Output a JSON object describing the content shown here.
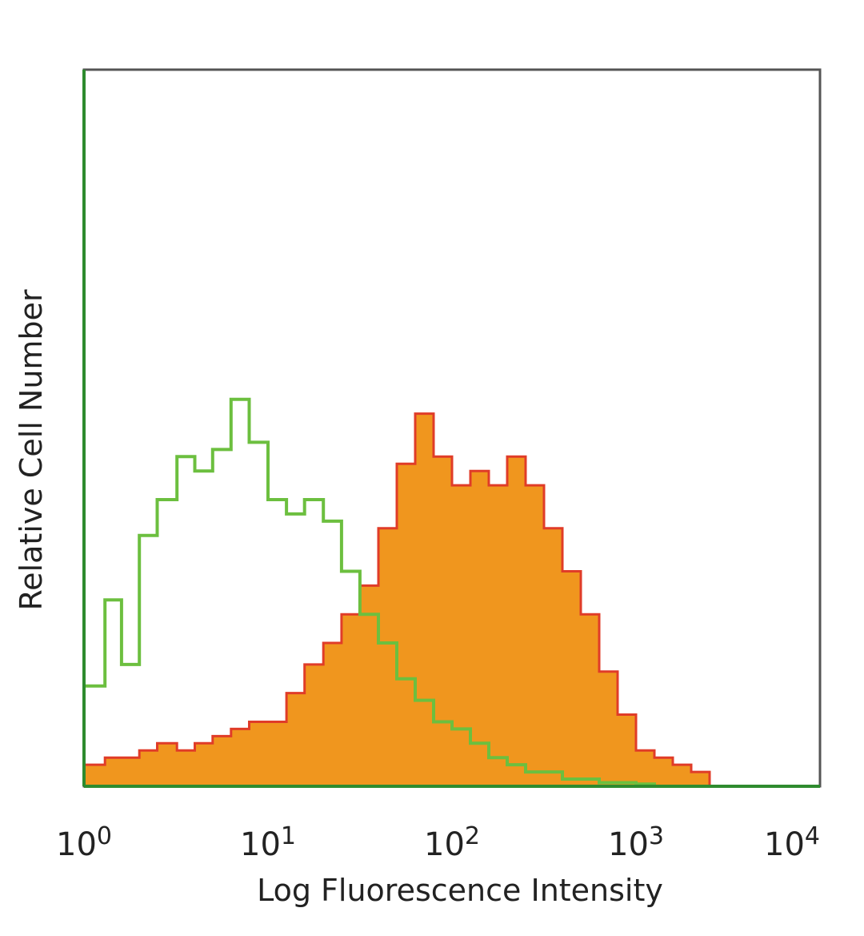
{
  "chart_data": {
    "type": "area",
    "title": "",
    "xlabel": "Log Fluorescence Intensity",
    "ylabel": "Relative Cell Number",
    "x_scale": "log10",
    "xlim": [
      1,
      10000
    ],
    "ylim": [
      0,
      100
    ],
    "grid": false,
    "legend": "none",
    "x_ticks": [
      {
        "value": 1,
        "base": "10",
        "exp": "0"
      },
      {
        "value": 10,
        "base": "10",
        "exp": "1"
      },
      {
        "value": 100,
        "base": "10",
        "exp": "2"
      },
      {
        "value": 1000,
        "base": "10",
        "exp": "3"
      },
      {
        "value": 10000,
        "base": "10",
        "exp": "4"
      }
    ],
    "series": [
      {
        "color": "#6cbf3f",
        "style": "line",
        "x": [
          1.0,
          1.3,
          1.6,
          2.0,
          2.5,
          3.2,
          4.0,
          5.0,
          6.3,
          7.9,
          10.0,
          12.6,
          15.8,
          20.0,
          25.1,
          31.6,
          39.8,
          50.1,
          63.1,
          79.4,
          100.0,
          125.9,
          158.5,
          199.5,
          251.2,
          316.2,
          398.1,
          501.2,
          631.0,
          794.3,
          1000.0,
          1258.9,
          1584.9,
          1995.3,
          2511.9,
          3162.3,
          3981.1,
          5011.9,
          6309.6,
          7943.3,
          10000.0
        ],
        "y": [
          14,
          26,
          17,
          35,
          40,
          46,
          44,
          47,
          54,
          48,
          40,
          38,
          40,
          37,
          30,
          24,
          20,
          15,
          12,
          9,
          8,
          6,
          4,
          3,
          2,
          2,
          1,
          1,
          0.5,
          0.5,
          0.3,
          0,
          0,
          0,
          0,
          0,
          0,
          0,
          0,
          0,
          0
        ]
      },
      {
        "color": "#f0961e",
        "edge_color": "#e03c28",
        "style": "filled",
        "x": [
          1.0,
          1.3,
          1.6,
          2.0,
          2.5,
          3.2,
          4.0,
          5.0,
          6.3,
          7.9,
          10.0,
          12.6,
          15.8,
          20.0,
          25.1,
          31.6,
          39.8,
          50.1,
          63.1,
          79.4,
          100.0,
          125.9,
          158.5,
          199.5,
          251.2,
          316.2,
          398.1,
          501.2,
          631.0,
          794.3,
          1000.0,
          1258.9,
          1584.9,
          1995.3,
          2511.9,
          3162.3,
          3981.1,
          5011.9,
          6309.6,
          7943.3,
          10000.0
        ],
        "y": [
          3,
          4,
          4,
          5,
          6,
          5,
          6,
          7,
          8,
          9,
          9,
          13,
          17,
          20,
          24,
          28,
          36,
          45,
          52,
          46,
          42,
          44,
          42,
          46,
          42,
          36,
          30,
          24,
          16,
          10,
          5,
          4,
          3,
          2,
          0,
          0,
          0,
          0,
          0,
          0,
          0
        ]
      }
    ]
  }
}
